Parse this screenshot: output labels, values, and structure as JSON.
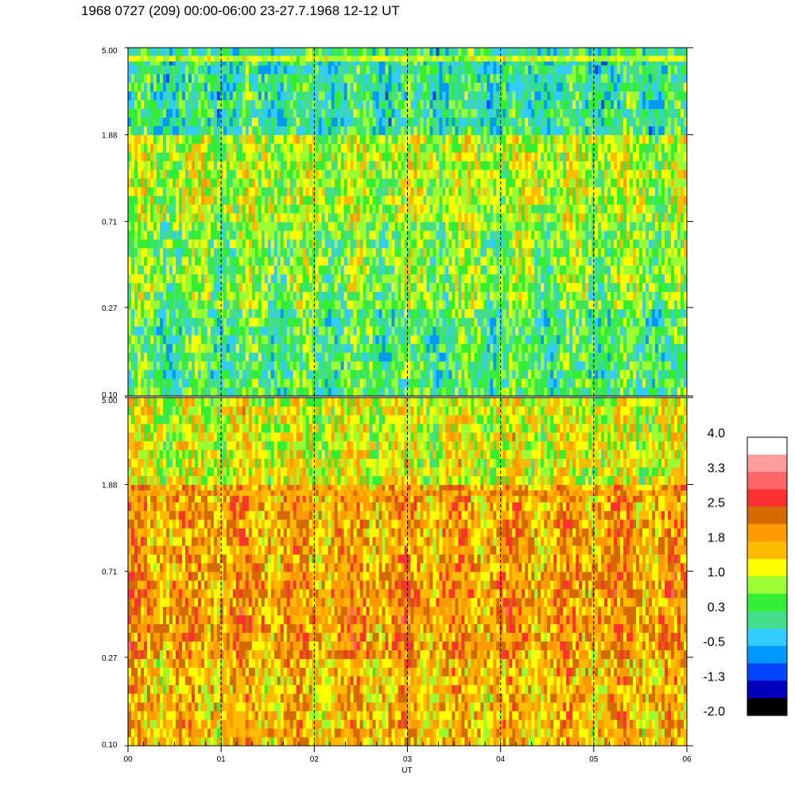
{
  "title": "1968 0727 (209) 00:00-06:00 23-27.7.1968  12-12 UT",
  "chart_data": {
    "type": "heatmap",
    "title": "1968 0727 (209) 00:00-06:00 23-27.7.1968  12-12 UT",
    "xlabel": "UT",
    "ylabel": "",
    "x_tick_labels": [
      "00",
      "01",
      "02",
      "03",
      "04",
      "05",
      "06"
    ],
    "x_ticks": [
      0,
      1,
      2,
      3,
      4,
      5,
      6
    ],
    "xlim": [
      0,
      6
    ],
    "y_scale": "log",
    "ylim": [
      0.1,
      5.0
    ],
    "grid": "dashed vertical lines at each hour",
    "panels": [
      {
        "position": "top",
        "y_ticks": [
          0.1,
          0.27,
          0.71,
          1.88,
          5.0
        ],
        "y_tick_labels": [
          "0.10",
          "0.27",
          "0.71",
          "1.88",
          "5.00"
        ],
        "dominant_levels_by_y": [
          {
            "y_range": [
              0.1,
              0.27
            ],
            "level": 0.3
          },
          {
            "y_range": [
              0.27,
              0.71
            ],
            "level": 0.6
          },
          {
            "y_range": [
              0.71,
              1.88
            ],
            "level": 0.9
          },
          {
            "y_range": [
              1.88,
              5.0
            ],
            "level": 0.1
          }
        ],
        "note_band": {
          "y": 4.4,
          "level": 1.0
        }
      },
      {
        "position": "bottom",
        "y_ticks": [
          0.1,
          0.27,
          0.71,
          1.88,
          5.0
        ],
        "y_tick_labels": [
          "0.10",
          "0.27",
          "0.71",
          "1.88",
          "5.00"
        ],
        "dominant_levels_by_y": [
          {
            "y_range": [
              0.1,
              0.27
            ],
            "level": 1.6
          },
          {
            "y_range": [
              0.27,
              0.71
            ],
            "level": 1.9
          },
          {
            "y_range": [
              0.71,
              1.88
            ],
            "level": 1.8
          },
          {
            "y_range": [
              1.88,
              5.0
            ],
            "level": 1.1
          }
        ],
        "note_band": {
          "y": 1.7,
          "level": 1.9
        }
      }
    ],
    "colorbar": {
      "labels": [
        "4.0",
        "3.3",
        "2.5",
        "1.8",
        "1.0",
        "0.3",
        "-0.5",
        "-1.3",
        "-2.0"
      ],
      "range": [
        -2.0,
        4.0
      ],
      "colors_top_to_bottom": [
        "#ffffff",
        "#ff9c9c",
        "#ff6565",
        "#ff3232",
        "#d46a00",
        "#ff9a00",
        "#ffbb00",
        "#ffff00",
        "#99ff33",
        "#33ee33",
        "#44dd88",
        "#33ccff",
        "#0099ff",
        "#0044ff",
        "#0000bb",
        "#000000"
      ]
    }
  }
}
